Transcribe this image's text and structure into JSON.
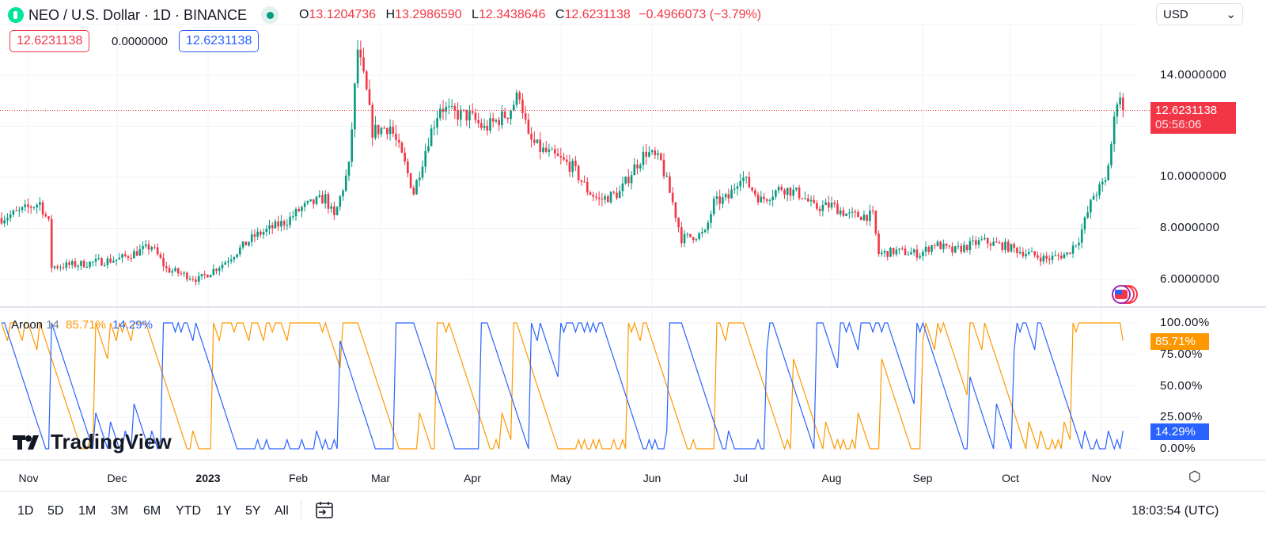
{
  "header": {
    "symbol": "NEO / U.S. Dollar · 1D · BINANCE",
    "open_label": "O",
    "open": "13.1204736",
    "high_label": "H",
    "high": "13.2986590",
    "low_label": "L",
    "low": "12.3438646",
    "close_label": "C",
    "close": "12.6231138",
    "change": "−0.4966073 (−3.79%)"
  },
  "price_boxes": {
    "left": "12.6231138",
    "middle": "0.0000000",
    "right": "12.6231138"
  },
  "currency": {
    "selected": "USD"
  },
  "price_axis": {
    "labels": [
      "14.0000000",
      "10.0000000",
      "8.0000000",
      "6.0000000"
    ],
    "current_price": "12.6231138",
    "countdown": "05:56:06"
  },
  "aroon": {
    "name": "Aroon",
    "length": "14",
    "up": "85.71%",
    "down": "14.29%",
    "axis_labels": [
      "100.00%",
      "75.00%",
      "50.00%",
      "25.00%",
      "0.00%"
    ]
  },
  "time_axis": {
    "labels": [
      "Nov",
      "Dec",
      "2023",
      "Feb",
      "Mar",
      "Apr",
      "May",
      "Jun",
      "Jul",
      "Aug",
      "Sep",
      "Oct",
      "Nov"
    ]
  },
  "toolbar": {
    "timeframes": [
      "1D",
      "5D",
      "1M",
      "3M",
      "6M",
      "YTD",
      "1Y",
      "5Y",
      "All"
    ],
    "clock": "18:03:54 (UTC)"
  },
  "brand": "TradingView",
  "colors": {
    "up": "#089981",
    "down": "#f23645",
    "aroon_up": "#ff9800",
    "aroon_down": "#2962ff"
  },
  "chart_data": {
    "type": "candlestick",
    "title": "NEO / U.S. Dollar · 1D · BINANCE",
    "x_unit": "days since 2022-10-22",
    "ylim": [
      5,
      16.5
    ],
    "close_anchors": [
      [
        0,
        8.4
      ],
      [
        5,
        8.6
      ],
      [
        13,
        9.0
      ],
      [
        16,
        8.2
      ],
      [
        17,
        6.5
      ],
      [
        27,
        6.6
      ],
      [
        40,
        6.8
      ],
      [
        51,
        7.3
      ],
      [
        56,
        6.4
      ],
      [
        67,
        6.0
      ],
      [
        75,
        6.6
      ],
      [
        86,
        7.7
      ],
      [
        97,
        8.3
      ],
      [
        102,
        8.8
      ],
      [
        110,
        9.2
      ],
      [
        113,
        8.4
      ],
      [
        118,
        10.4
      ],
      [
        121,
        15.0
      ],
      [
        124,
        13.3
      ],
      [
        126,
        11.8
      ],
      [
        132,
        12.0
      ],
      [
        137,
        10.5
      ],
      [
        140,
        9.4
      ],
      [
        145,
        11.5
      ],
      [
        149,
        12.8
      ],
      [
        153,
        12.5
      ],
      [
        159,
        12.4
      ],
      [
        164,
        11.9
      ],
      [
        172,
        12.5
      ],
      [
        176,
        13.3
      ],
      [
        179,
        11.5
      ],
      [
        183,
        11.1
      ],
      [
        188,
        10.8
      ],
      [
        194,
        10.4
      ],
      [
        199,
        9.5
      ],
      [
        203,
        9.1
      ],
      [
        210,
        9.4
      ],
      [
        215,
        10.4
      ],
      [
        219,
        11.0
      ],
      [
        224,
        10.6
      ],
      [
        228,
        9.0
      ],
      [
        231,
        7.6
      ],
      [
        239,
        7.8
      ],
      [
        242,
        9.0
      ],
      [
        247,
        9.2
      ],
      [
        251,
        10.1
      ],
      [
        258,
        9.1
      ],
      [
        265,
        9.6
      ],
      [
        272,
        9.3
      ],
      [
        276,
        8.8
      ],
      [
        282,
        8.9
      ],
      [
        288,
        8.5
      ],
      [
        296,
        8.5
      ],
      [
        298,
        7.0
      ],
      [
        304,
        7.1
      ],
      [
        312,
        7.0
      ],
      [
        317,
        7.4
      ],
      [
        323,
        7.1
      ],
      [
        333,
        7.5
      ],
      [
        341,
        7.3
      ],
      [
        349,
        7.0
      ],
      [
        355,
        6.8
      ],
      [
        362,
        7.0
      ],
      [
        366,
        7.6
      ],
      [
        371,
        9.3
      ],
      [
        375,
        9.8
      ],
      [
        377,
        11.3
      ],
      [
        379,
        13.1
      ],
      [
        380,
        13.12
      ],
      [
        381,
        12.62
      ]
    ],
    "aroon_length": 14,
    "aroon_last": {
      "up": 85.71,
      "down": 14.29
    }
  }
}
